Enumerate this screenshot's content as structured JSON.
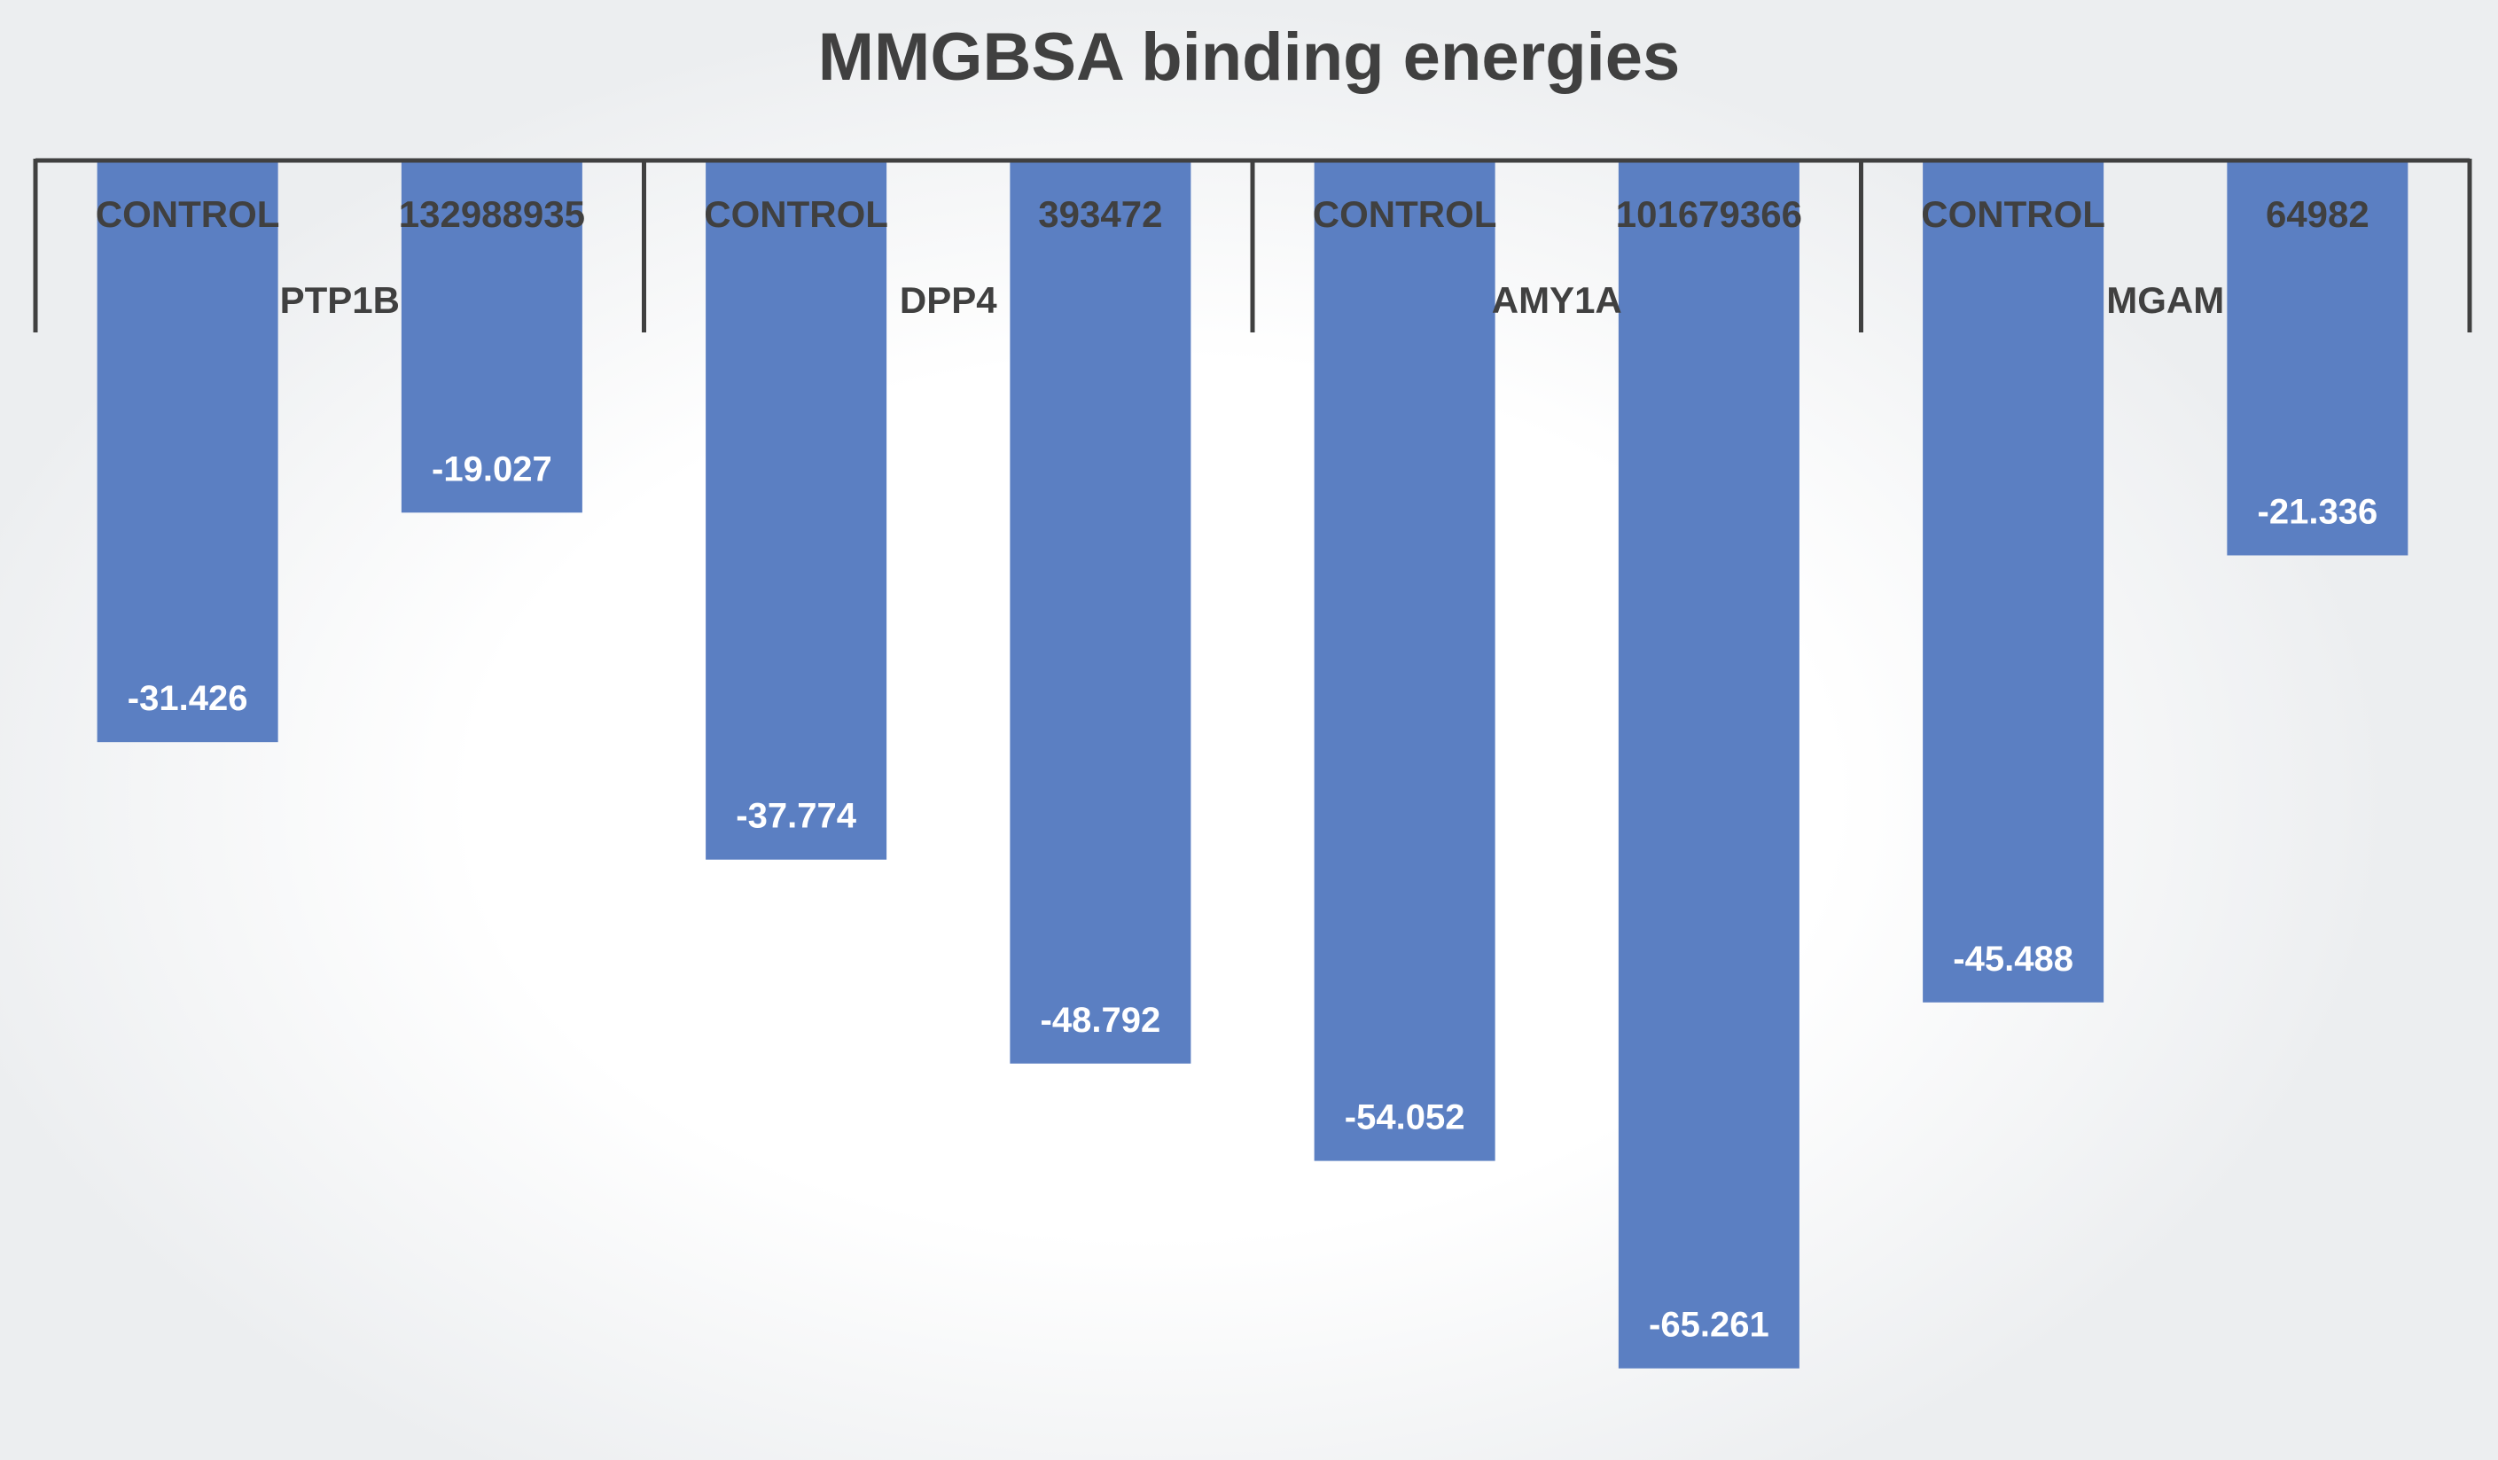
{
  "chart_data": {
    "type": "bar",
    "title": "MMGBSA  binding energies",
    "xlabel": "",
    "ylabel": "",
    "ylim": [
      -70,
      0
    ],
    "grid": false,
    "legend": "none",
    "bar_color": "#5b7fc2",
    "axis_color": "#404040",
    "groups": [
      {
        "name": "PTP1B",
        "bars": [
          {
            "category": "CONTROL",
            "value": -31.426,
            "label": "-31.426"
          },
          {
            "category": "132988935",
            "value": -19.027,
            "label": "-19.027"
          }
        ]
      },
      {
        "name": "DPP4",
        "bars": [
          {
            "category": "CONTROL",
            "value": -37.774,
            "label": "-37.774"
          },
          {
            "category": "393472",
            "value": -48.792,
            "label": "-48.792"
          }
        ]
      },
      {
        "name": "AMY1A",
        "bars": [
          {
            "category": "CONTROL",
            "value": -54.052,
            "label": "-54.052"
          },
          {
            "category": "101679366",
            "value": -65.261,
            "label": "-65.261"
          }
        ]
      },
      {
        "name": "MGAM",
        "bars": [
          {
            "category": "CONTROL",
            "value": -45.488,
            "label": "-45.488"
          },
          {
            "category": "64982",
            "value": -21.336,
            "label": "-21.336"
          }
        ]
      }
    ]
  }
}
